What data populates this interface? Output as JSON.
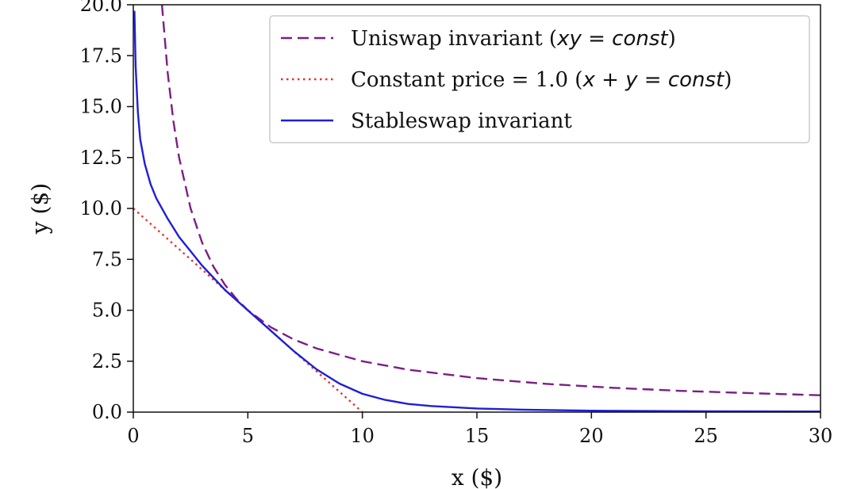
{
  "chart_data": {
    "type": "line",
    "xlabel": "x ($)",
    "ylabel": "y ($)",
    "xlim": [
      0,
      30
    ],
    "ylim": [
      0,
      20
    ],
    "xticks": [
      "0",
      "5",
      "10",
      "15",
      "20",
      "25",
      "30"
    ],
    "yticks": [
      "0.0",
      "2.5",
      "5.0",
      "7.5",
      "10.0",
      "12.5",
      "15.0",
      "17.5",
      "20.0"
    ],
    "grid": false,
    "legend_position": "top-right",
    "series": [
      {
        "name": "Uniswap invariant (xy = const)",
        "legend_prefix": "Uniswap invariant (",
        "legend_math": "xy = const",
        "legend_suffix": ")",
        "style": "dashed",
        "color": "#7b1f86",
        "x": [
          1.25,
          1.5,
          1.75,
          2.0,
          2.5,
          3.0,
          3.5,
          4.0,
          4.5,
          5.0,
          6.0,
          7.0,
          8.0,
          10.0,
          12.0,
          15.0,
          18.0,
          21.0,
          24.0,
          27.0,
          30.0
        ],
        "y": [
          20.0,
          16.67,
          14.29,
          12.5,
          10.0,
          8.33,
          7.14,
          6.25,
          5.56,
          5.0,
          4.17,
          3.57,
          3.13,
          2.5,
          2.08,
          1.67,
          1.39,
          1.19,
          1.04,
          0.93,
          0.83
        ]
      },
      {
        "name": "Constant price = 1.0 (x + y = const)",
        "legend_prefix": "Constant price = 1.0 (",
        "legend_math": "x + y = const",
        "legend_suffix": ")",
        "style": "dotted",
        "color": "#e8322b",
        "x": [
          0,
          10
        ],
        "y": [
          10,
          0
        ]
      },
      {
        "name": "Stableswap invariant",
        "legend_prefix": "Stableswap invariant",
        "legend_math": "",
        "legend_suffix": "",
        "style": "solid",
        "color": "#1f1fd6",
        "x": [
          0.05,
          0.1,
          0.2,
          0.3,
          0.5,
          0.75,
          1.0,
          1.5,
          2.0,
          2.5,
          3.0,
          4.0,
          5.0,
          6.0,
          7.0,
          8.0,
          9.0,
          10.0,
          11.0,
          12.0,
          13.0,
          15.0,
          17.0,
          20.0,
          25.0,
          30.0
        ],
        "y": [
          19.7,
          17.0,
          14.7,
          13.4,
          12.2,
          11.2,
          10.5,
          9.5,
          8.6,
          7.9,
          7.2,
          6.0,
          5.0,
          4.0,
          3.0,
          2.1,
          1.4,
          0.9,
          0.6,
          0.4,
          0.3,
          0.18,
          0.12,
          0.07,
          0.04,
          0.03
        ]
      }
    ]
  }
}
